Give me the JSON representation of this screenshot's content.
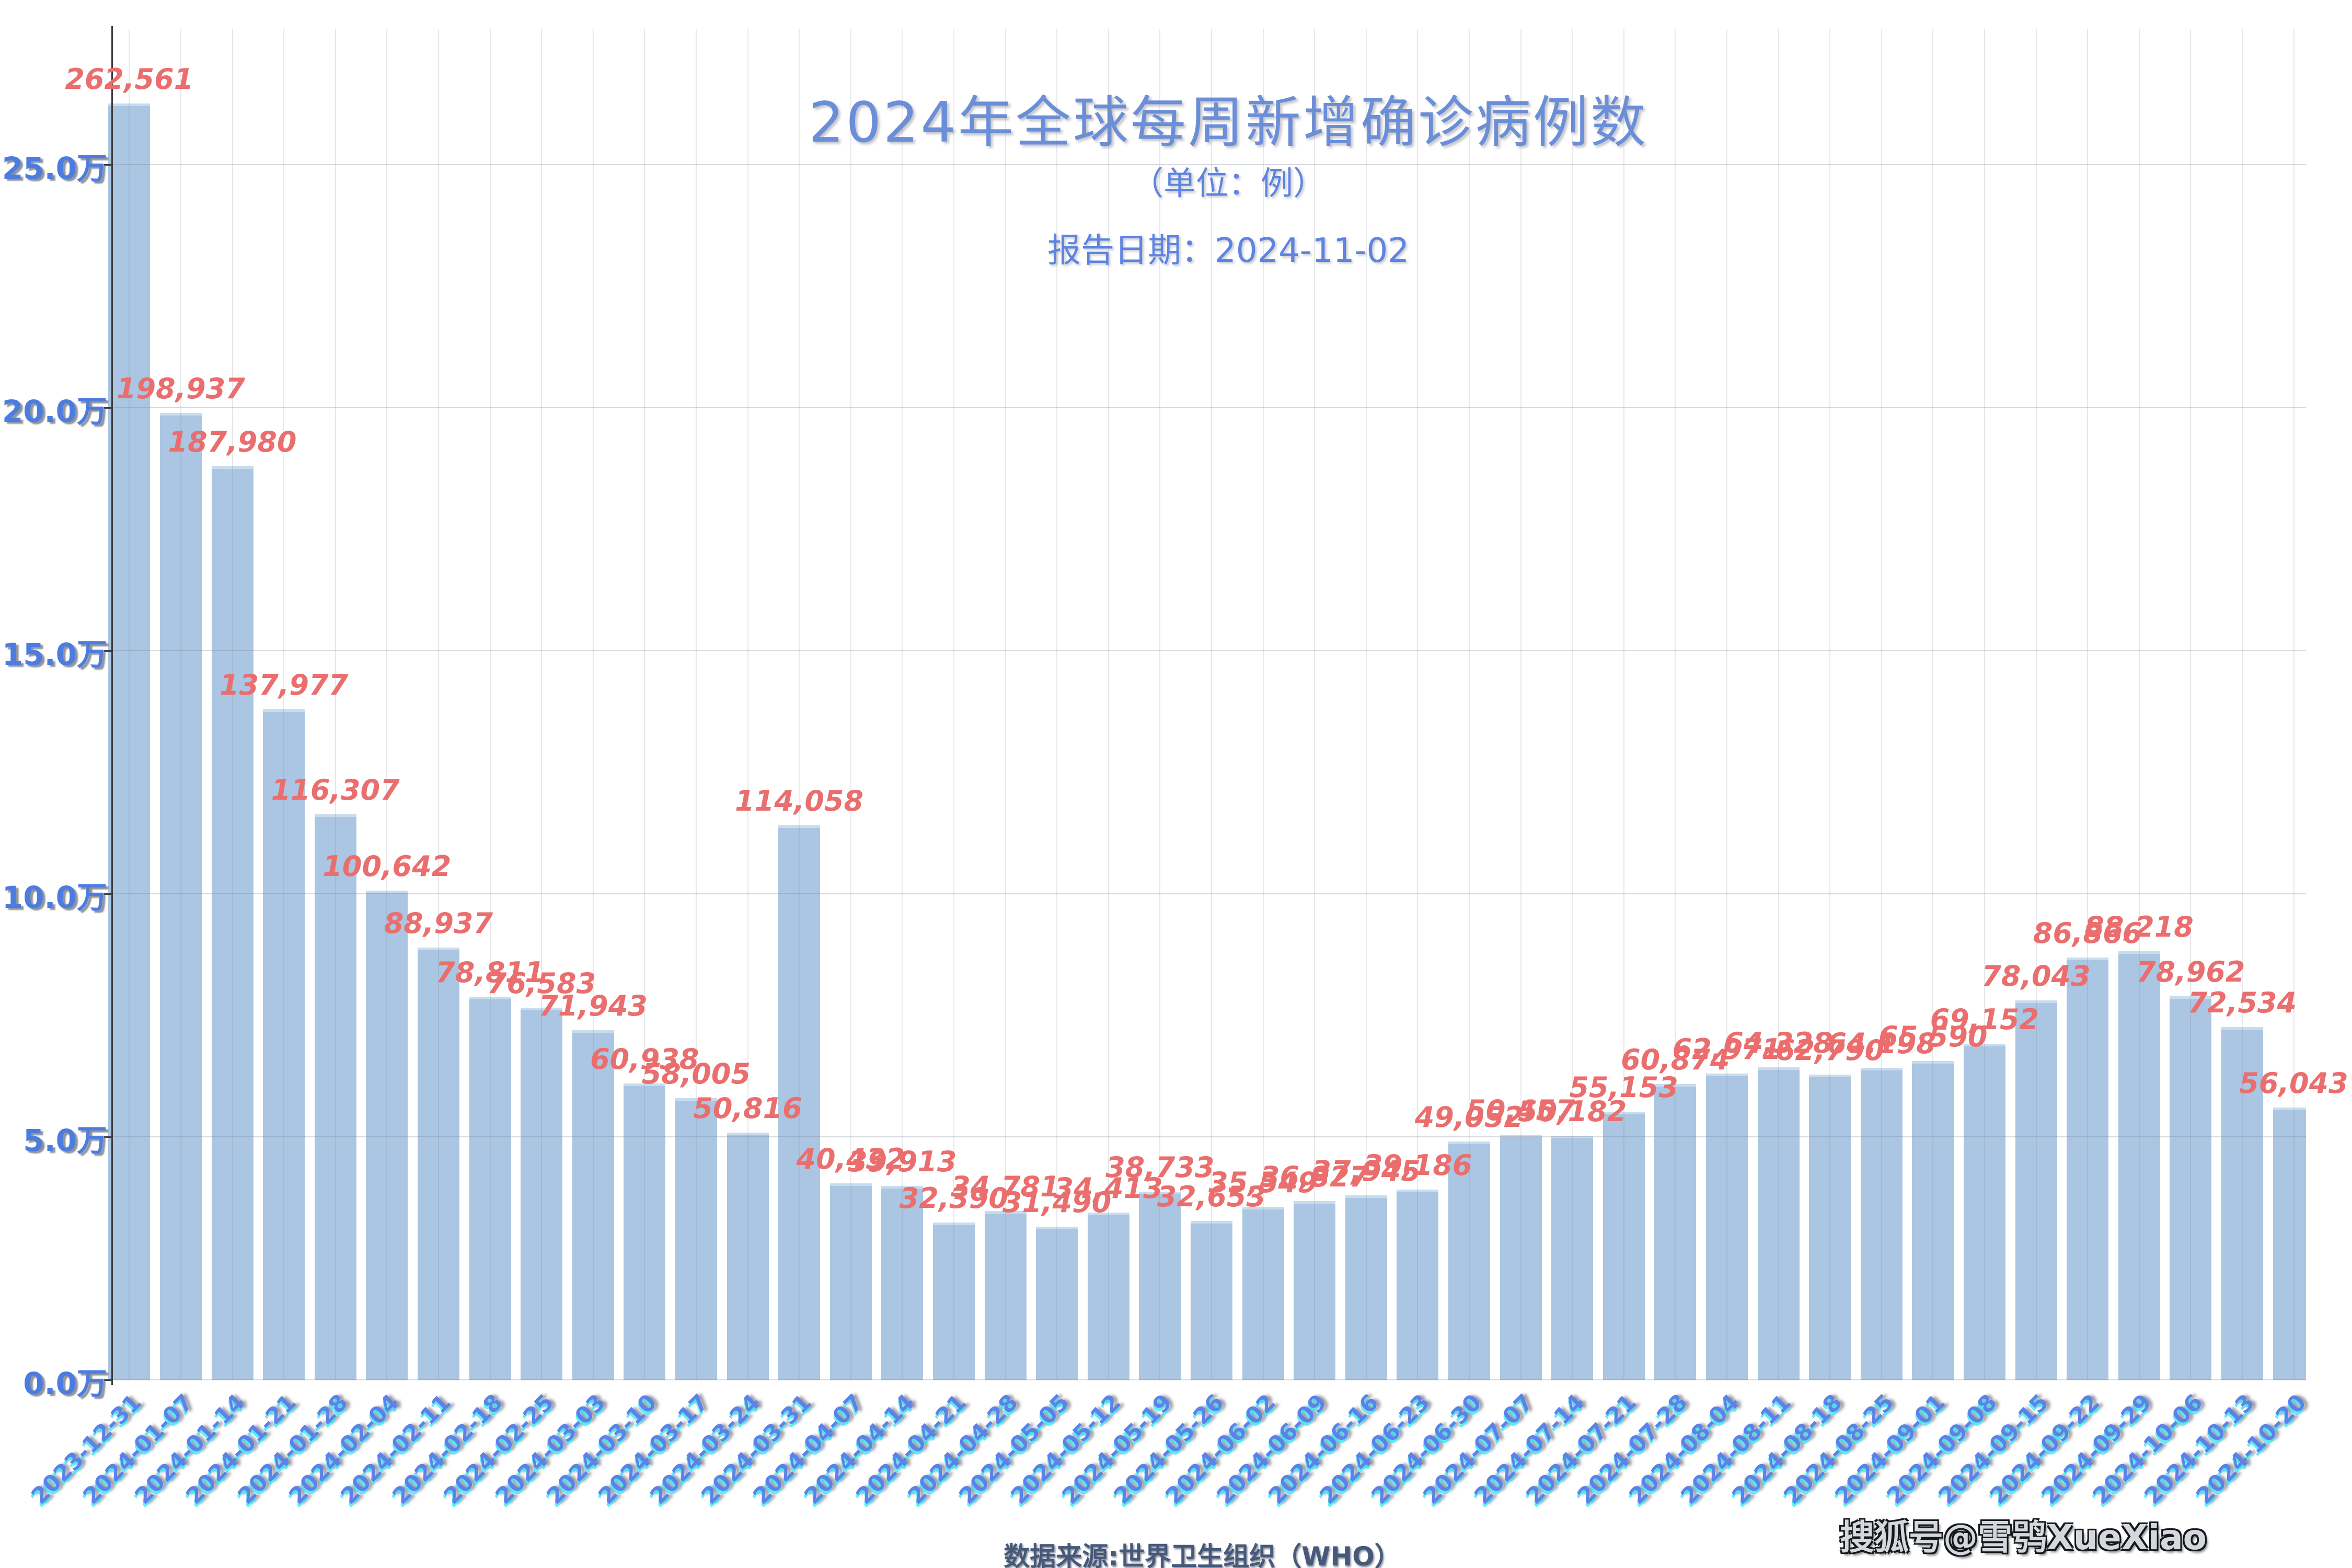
{
  "header": {
    "title": "2024年全球每周新增确诊病例数",
    "subtitle": "（单位：例）",
    "report_date_line": "报告日期：2024-11-02"
  },
  "footer": {
    "source_text": "数据来源:世界卫生组织（WHO）",
    "watermark": "搜狐号@雪鸮XueXiao"
  },
  "colors": {
    "bar_fill": "#aac6e2",
    "bar_cap": "#c9dcee",
    "value_label": "#ea6e6e",
    "axis_label_blue": "#4d7ce0",
    "date_label_blue": "#5b82e8",
    "date_label_shadow_cyan": "#35e6f5",
    "title_blue": "#6b8ed8",
    "axis_line": "#3f3f3f",
    "background": "#ffffff"
  },
  "chart_data": {
    "type": "bar",
    "title": "2024年全球每周新增确诊病例数",
    "xlabel": "",
    "ylabel": "",
    "legend": null,
    "grid": true,
    "ylim": [
      0,
      270000
    ],
    "y_axis": {
      "tick_labels": [
        "25.0万",
        "20.0万",
        "15.0万",
        "10.0万",
        "5.0万",
        "0.0万"
      ],
      "tick_values": [
        250000,
        200000,
        150000,
        100000,
        50000,
        0
      ]
    },
    "categories": [
      "2023-12-31",
      "2024-01-07",
      "2024-01-14",
      "2024-01-21",
      "2024-01-28",
      "2024-02-04",
      "2024-02-11",
      "2024-02-18",
      "2024-02-25",
      "2024-03-03",
      "2024-03-10",
      "2024-03-17",
      "2024-03-24",
      "2024-03-31",
      "2024-04-07",
      "2024-04-14",
      "2024-04-21",
      "2024-04-28",
      "2024-05-05",
      "2024-05-12",
      "2024-05-19",
      "2024-05-26",
      "2024-06-02",
      "2024-06-09",
      "2024-06-16",
      "2024-06-23",
      "2024-06-30",
      "2024-07-07",
      "2024-07-14",
      "2024-07-21",
      "2024-07-28",
      "2024-08-04",
      "2024-08-11",
      "2024-08-18",
      "2024-08-25",
      "2024-09-01",
      "2024-09-08",
      "2024-09-15",
      "2024-09-22",
      "2024-09-29",
      "2024-10-06",
      "2024-10-13",
      "2024-10-20"
    ],
    "values": [
      262561,
      198937,
      187980,
      137977,
      116307,
      100642,
      88937,
      78811,
      76583,
      71943,
      60938,
      58005,
      50816,
      114058,
      40432,
      39913,
      32390,
      34781,
      31490,
      34413,
      38733,
      32653,
      35549,
      36827,
      37945,
      39186,
      49052,
      50457,
      50182,
      55153,
      60874,
      62971,
      64328,
      62790,
      64198,
      65590,
      69152,
      78043,
      86866,
      88218,
      78962,
      72534,
      56043
    ],
    "value_labels": [
      "262,561",
      "198,937",
      "187,980",
      "137,977",
      "116,307",
      "100,642",
      "88,937",
      "78,811",
      "76,583",
      "71,943",
      "60,938",
      "58,005",
      "50,816",
      "114,058",
      "40,432",
      "39,913",
      "32,390",
      "34,781",
      "31,490",
      "34,413",
      "38,733",
      "32,653",
      "35,549",
      "36,827",
      "37,945",
      "39,186",
      "49,052",
      "50,457",
      "50,182",
      "55,153",
      "60,874",
      "62,971",
      "64,328",
      "62,790",
      "64,198",
      "65,590",
      "69,152",
      "78,043",
      "86,866",
      "88,218",
      "78,962",
      "72,534",
      "56,043"
    ]
  }
}
